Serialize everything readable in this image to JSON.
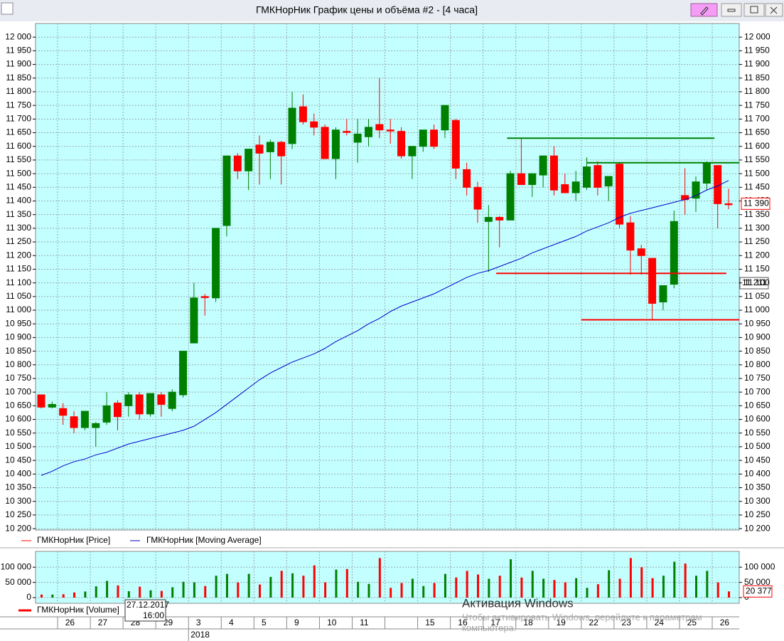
{
  "window": {
    "title": "ГМКНорНик График цены и объёма #2 - [4 часа]"
  },
  "chart_data": [
    {
      "type": "candlestick",
      "categories": [
        null,
        null,
        "26",
        null,
        null,
        "27",
        null,
        null,
        "28",
        null,
        null,
        "29",
        null,
        null,
        "3",
        null,
        null,
        "4",
        null,
        null,
        "5",
        null,
        null,
        "9",
        null,
        null,
        "10",
        null,
        null,
        "11",
        null,
        null,
        null,
        null,
        null,
        "15",
        null,
        null,
        "16",
        null,
        null,
        "17",
        null,
        null,
        "18",
        null,
        null,
        "19",
        null,
        null,
        "22",
        null,
        null,
        "23",
        null,
        null,
        "24",
        null,
        null,
        "25",
        null,
        null,
        "26",
        null
      ],
      "year_tick": {
        "value": 14,
        "label": "2018"
      },
      "series": [
        {
          "name": "ГМКНорНик [Price]",
          "color": "#ff0000",
          "up_color": "#008000",
          "down_color": "#ff0000",
          "open": [
            10690,
            10645,
            10640,
            10610,
            10570,
            10570,
            10590,
            10660,
            10650,
            10690,
            10620,
            10690,
            10640,
            10690,
            10880,
            11050,
            11045,
            11310,
            11565,
            11510,
            11605,
            11580,
            11615,
            11610,
            11745,
            11690,
            11670,
            11555,
            11655,
            11615,
            11635,
            11680,
            11660,
            11655,
            11565,
            11600,
            11660,
            11660,
            11695,
            11515,
            11450,
            11325,
            11340,
            11330,
            11500,
            11460,
            11495,
            11565,
            11460,
            11430,
            11450,
            11530,
            11455,
            11535,
            11320,
            11225,
            11190,
            11030,
            11095,
            11420,
            11410,
            11465,
            11530,
            11390
          ],
          "high": [
            10690,
            10665,
            10660,
            10630,
            10630,
            10590,
            10700,
            10670,
            10700,
            10700,
            10695,
            10700,
            10710,
            10850,
            11100,
            11060,
            11300,
            11565,
            11575,
            11590,
            11640,
            11625,
            11620,
            11800,
            11790,
            11720,
            11680,
            11670,
            11700,
            11700,
            11700,
            11850,
            11700,
            11670,
            11600,
            11660,
            11680,
            11750,
            11700,
            11540,
            11470,
            11385,
            11345,
            11510,
            11630,
            11500,
            11565,
            11600,
            11500,
            11510,
            11560,
            11545,
            11490,
            11540,
            11345,
            11240,
            11190,
            11090,
            11365,
            11520,
            11490,
            11545,
            11530,
            11445
          ],
          "low": [
            10640,
            10640,
            10580,
            10550,
            10560,
            10500,
            10580,
            10560,
            10610,
            10600,
            10610,
            10610,
            10630,
            10680,
            10880,
            10980,
            11030,
            11270,
            11480,
            11440,
            11460,
            11480,
            11460,
            11590,
            11680,
            11640,
            11555,
            11480,
            11640,
            11540,
            11600,
            11630,
            11610,
            11555,
            11480,
            11580,
            11590,
            11630,
            11480,
            11420,
            11320,
            11140,
            11230,
            11330,
            11460,
            11415,
            11450,
            11420,
            11430,
            11400,
            11440,
            11420,
            11400,
            11300,
            11130,
            11130,
            10965,
            11000,
            11080,
            11350,
            11360,
            11440,
            11300,
            11370
          ],
          "close": [
            10645,
            10655,
            10615,
            10570,
            10630,
            10585,
            10650,
            10610,
            10690,
            10620,
            10695,
            10655,
            10700,
            10850,
            11045,
            11050,
            11300,
            11565,
            11510,
            11590,
            11575,
            11615,
            11565,
            11740,
            11690,
            11670,
            11555,
            11660,
            11655,
            11645,
            11670,
            11660,
            11660,
            11565,
            11600,
            11660,
            11600,
            11750,
            11520,
            11450,
            11370,
            11340,
            11330,
            11500,
            11460,
            11500,
            11565,
            11440,
            11430,
            11470,
            11525,
            11450,
            11490,
            11315,
            11220,
            11200,
            11025,
            11090,
            11325,
            11405,
            11470,
            11540,
            11390,
            11390
          ]
        },
        {
          "name": "ГМКНорНик [Moving Average]",
          "type": "line",
          "color": "#0000cc",
          "values": [
            10395,
            10410,
            10430,
            10445,
            10455,
            10470,
            10480,
            10495,
            10510,
            10520,
            10530,
            10540,
            10550,
            10560,
            10575,
            10600,
            10625,
            10655,
            10685,
            10715,
            10745,
            10770,
            10790,
            10810,
            10825,
            10840,
            10860,
            10885,
            10905,
            10925,
            10950,
            10970,
            10995,
            11015,
            11030,
            11045,
            11060,
            11080,
            11100,
            11120,
            11135,
            11145,
            11160,
            11175,
            11190,
            11210,
            11225,
            11240,
            11255,
            11270,
            11290,
            11305,
            11320,
            11340,
            11355,
            11365,
            11375,
            11385,
            11395,
            11405,
            11420,
            11440,
            11455,
            11475
          ]
        }
      ],
      "levels": [
        {
          "value": 11630,
          "color": "#008000",
          "x0": 42.7,
          "x1": 61.7
        },
        {
          "value": 11540,
          "color": "#008000",
          "x0": 50,
          "x1": 64.2
        },
        {
          "value": 11135,
          "color": "#ff0000",
          "x0": 41.7,
          "x1": 62.8
        },
        {
          "value": 10965,
          "color": "#ff0000",
          "x0": 49.5,
          "x1": 64.2
        }
      ],
      "last_price": {
        "value": 11390,
        "label": "11 390"
      },
      "marker_label": "11 211",
      "ylim": [
        10195,
        12050
      ],
      "yticks": [
        {
          "value": 10200,
          "label": "10 200"
        },
        {
          "value": 10250,
          "label": "10 250"
        },
        {
          "value": 10300,
          "label": "10 300"
        },
        {
          "value": 10350,
          "label": "10 350"
        },
        {
          "value": 10400,
          "label": "10 400"
        },
        {
          "value": 10450,
          "label": "10 450"
        },
        {
          "value": 10500,
          "label": "10 500"
        },
        {
          "value": 10550,
          "label": "10 550"
        },
        {
          "value": 10600,
          "label": "10 600"
        },
        {
          "value": 10650,
          "label": "10 650"
        },
        {
          "value": 10700,
          "label": "10 700"
        },
        {
          "value": 10750,
          "label": "10 750"
        },
        {
          "value": 10800,
          "label": "10 800"
        },
        {
          "value": 10850,
          "label": "10 850"
        },
        {
          "value": 10900,
          "label": "10 900"
        },
        {
          "value": 10950,
          "label": "10 950"
        },
        {
          "value": 11000,
          "label": "11 000"
        },
        {
          "value": 11050,
          "label": "11 050"
        },
        {
          "value": 11100,
          "label": "11 100"
        },
        {
          "value": 11150,
          "label": "11 150"
        },
        {
          "value": 11200,
          "label": "11 200"
        },
        {
          "value": 11250,
          "label": "11 250"
        },
        {
          "value": 11300,
          "label": "11 300"
        },
        {
          "value": 11350,
          "label": "11 350"
        },
        {
          "value": 11400,
          "label": "11 400"
        },
        {
          "value": 11450,
          "label": "11 450"
        },
        {
          "value": 11500,
          "label": "11 500"
        },
        {
          "value": 11550,
          "label": "11 550"
        },
        {
          "value": 11600,
          "label": "11 600"
        },
        {
          "value": 11650,
          "label": "11 650"
        },
        {
          "value": 11700,
          "label": "11 700"
        },
        {
          "value": 11750,
          "label": "11 750"
        },
        {
          "value": 11800,
          "label": "11 800"
        },
        {
          "value": 11850,
          "label": "11 850"
        },
        {
          "value": 11900,
          "label": "11 900"
        },
        {
          "value": 11950,
          "label": "11 950"
        },
        {
          "value": 12000,
          "label": "12 000"
        }
      ],
      "grid": true
    },
    {
      "type": "bar",
      "series": [
        {
          "name": "ГМКНорНик [Volume]",
          "color": "#ff0000",
          "values": [
            10000,
            10000,
            11000,
            17000,
            20000,
            37000,
            55000,
            40000,
            21000,
            36000,
            24000,
            22000,
            34000,
            52000,
            50000,
            38000,
            72000,
            78000,
            50000,
            78000,
            43000,
            68000,
            88000,
            80000,
            72000,
            106000,
            50000,
            92000,
            94000,
            52000,
            45000,
            130000,
            32000,
            48000,
            62000,
            38000,
            48000,
            78000,
            66000,
            88000,
            76000,
            62000,
            72000,
            126000,
            66000,
            88000,
            62000,
            58000,
            50000,
            64000,
            32000,
            44000,
            90000,
            62000,
            130000,
            100000,
            64000,
            72000,
            118000,
            112000,
            72000,
            88000,
            50000,
            20377
          ]
        }
      ],
      "last_value": {
        "value": 20377,
        "label": "20 377"
      },
      "ylim": [
        0,
        145000
      ],
      "yticks": [
        0,
        {
          "value": 50000,
          "label": "50 000"
        },
        {
          "value": 100000,
          "label": "100 000"
        }
      ],
      "grid": true
    }
  ],
  "tooltip": [
    "27.12.2017",
    "16:00"
  ],
  "watermark": [
    "Активация Windows",
    "Чтобы активировать Windows, перейдите к параметрам компьютера."
  ]
}
